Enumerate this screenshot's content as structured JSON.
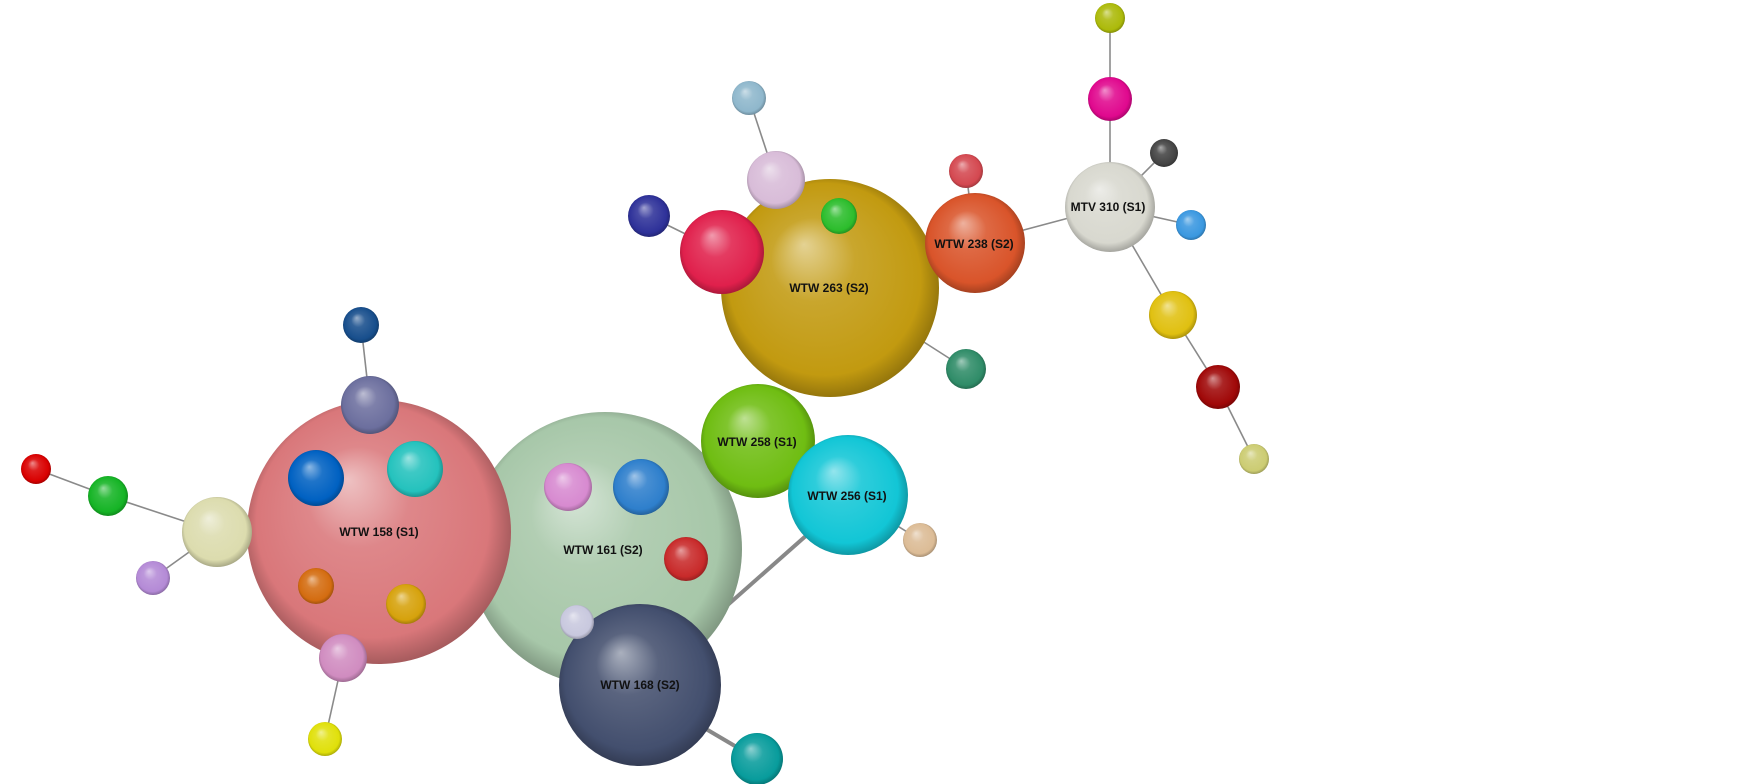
{
  "network": {
    "nodes": [
      {
        "id": "wtw158",
        "label": "WTW 158 (S1)",
        "color": "#d9777a"
      },
      {
        "id": "wtw161",
        "label": "WTW 161 (S2)",
        "color": "#a7c7a9"
      },
      {
        "id": "wtw168",
        "label": "WTW 168 (S2)",
        "color": "#434f6e"
      },
      {
        "id": "wtw263",
        "label": "WTW 263 (S2)",
        "color": "#c29a10"
      },
      {
        "id": "wtw238",
        "label": "WTW 238 (S2)",
        "color": "#d9542a"
      },
      {
        "id": "mtv310",
        "label": "MTV 310 (S1)",
        "color": "#d8d8cf"
      },
      {
        "id": "wtw258",
        "label": "WTW 258 (S1)",
        "color": "#6fbd12"
      },
      {
        "id": "wtw256",
        "label": "WTW 256 (S1)",
        "color": "#12c6d6"
      }
    ],
    "satellites": [
      {
        "color": "#0061c2"
      },
      {
        "color": "#24c2bd"
      },
      {
        "color": "#d46c10"
      },
      {
        "color": "#d6a20c"
      },
      {
        "color": "#6c6f9e"
      },
      {
        "color": "#174e8c"
      },
      {
        "color": "#dcdcae"
      },
      {
        "color": "#15b425"
      },
      {
        "color": "#d90000"
      },
      {
        "color": "#b48ad6"
      },
      {
        "color": "#d08cc0"
      },
      {
        "color": "#e0e00a"
      },
      {
        "color": "#d78ad0"
      },
      {
        "color": "#2e7fcc"
      },
      {
        "color": "#c82a2a"
      },
      {
        "color": "#c8c8de"
      },
      {
        "color": "#089c9c"
      },
      {
        "color": "#e0204c"
      },
      {
        "color": "#2e3199"
      },
      {
        "color": "#d8bcd8"
      },
      {
        "color": "#8fb7cc"
      },
      {
        "color": "#2cbd2c"
      },
      {
        "color": "#2f8c68"
      },
      {
        "color": "#d44850"
      },
      {
        "color": "#acba0a"
      },
      {
        "color": "#e0088e"
      },
      {
        "color": "#444444"
      },
      {
        "color": "#3a98e0"
      },
      {
        "color": "#e0c010"
      },
      {
        "color": "#a00808"
      },
      {
        "color": "#cccc72"
      },
      {
        "color": "#dcbc96"
      }
    ]
  }
}
